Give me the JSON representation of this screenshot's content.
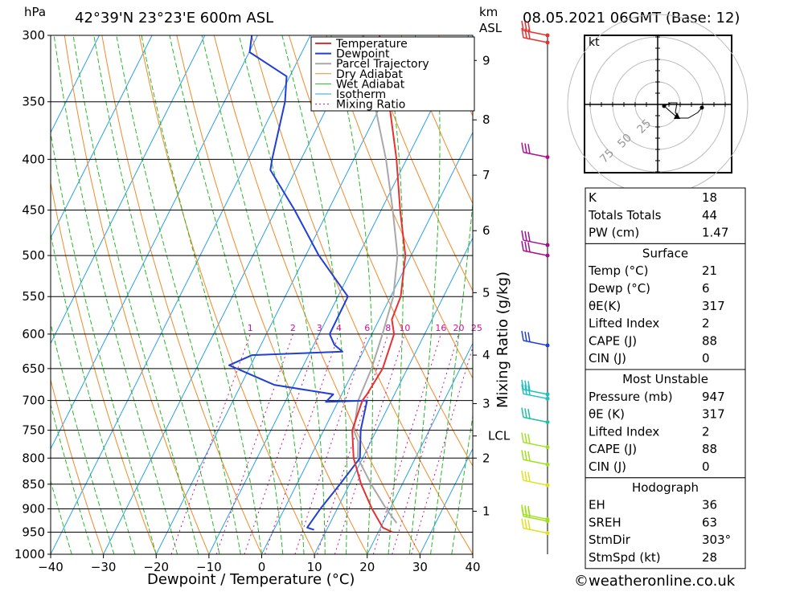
{
  "header": {
    "location": "42°39'N  23°23'E  600m  ASL",
    "datetime": "08.05.2021  06GMT  (Base: 12)",
    "hpa_unit": "hPa",
    "km_unit": "km",
    "asl_unit": "ASL"
  },
  "footer": {
    "copyright": "©weatheronline.co.uk"
  },
  "chart_data": {
    "type": "line",
    "title": "Skew-T log-P diagram",
    "xlabel": "Dewpoint / Temperature (°C)",
    "ylabel": "hPa",
    "right_axis_label": "Mixing Ratio (g/kg)",
    "x_ticks": [
      -40,
      -30,
      -20,
      -10,
      0,
      10,
      20,
      30,
      40
    ],
    "x_range": [
      -40,
      40
    ],
    "p_range": [
      300,
      1000
    ],
    "p_ticks": [
      300,
      350,
      400,
      450,
      500,
      550,
      600,
      650,
      700,
      750,
      800,
      850,
      900,
      950,
      1000
    ],
    "km_ticks": [
      {
        "label": "9",
        "p": 318
      },
      {
        "label": "8",
        "p": 365
      },
      {
        "label": "7",
        "p": 415
      },
      {
        "label": "6",
        "p": 472
      },
      {
        "label": "5",
        "p": 545
      },
      {
        "label": "4",
        "p": 630
      },
      {
        "label": "3",
        "p": 705
      },
      {
        "label": "LCL",
        "p": 760
      },
      {
        "label": "2",
        "p": 800
      },
      {
        "label": "1",
        "p": 905
      }
    ],
    "mixing_ratio_labels": [
      "1",
      "2",
      "3",
      "4",
      "6",
      "8",
      "10",
      "16",
      "20",
      "25"
    ],
    "mixing_ratio_values": [
      1,
      2,
      3,
      4,
      6,
      8,
      10,
      16,
      20,
      25
    ],
    "legend": [
      "Temperature",
      "Dewpoint",
      "Parcel Trajectory",
      "Dry Adiabat",
      "Wet Adiabat",
      "Isotherm",
      "Mixing Ratio"
    ],
    "colors": {
      "temperature": "#e83030",
      "dewpoint": "#1f3fd6",
      "parcel": "#a8a8a8",
      "dry_adiabat": "#f08a28",
      "wet_adiabat": "#28b828",
      "isotherm": "#28a0e8",
      "mixing_ratio": "#d01090"
    },
    "series": [
      {
        "name": "Temperature",
        "points": [
          [
            22.7,
            950
          ],
          [
            20.4,
            940
          ],
          [
            16.6,
            900
          ],
          [
            12.2,
            850
          ],
          [
            8.3,
            800
          ],
          [
            5.4,
            750
          ],
          [
            4.5,
            700
          ],
          [
            4.8,
            690
          ],
          [
            5.3,
            650
          ],
          [
            4.2,
            600
          ],
          [
            2.4,
            580
          ],
          [
            1.9,
            550
          ],
          [
            -1.1,
            500
          ],
          [
            -6.4,
            450
          ],
          [
            -11.9,
            400
          ],
          [
            -18.8,
            350
          ],
          [
            -26.9,
            300
          ]
        ]
      },
      {
        "name": "Dewpoint",
        "points": [
          [
            7.6,
            945
          ],
          [
            6.1,
            940
          ],
          [
            6.8,
            900
          ],
          [
            8.2,
            850
          ],
          [
            9.5,
            800
          ],
          [
            7.0,
            750
          ],
          [
            5.4,
            700
          ],
          [
            -2.3,
            702
          ],
          [
            -1.6,
            690
          ],
          [
            -13.7,
            675
          ],
          [
            -24.1,
            645
          ],
          [
            -20.7,
            630
          ],
          [
            -3.9,
            625
          ],
          [
            -6.1,
            615
          ],
          [
            -8.0,
            600
          ],
          [
            -8.1,
            550
          ],
          [
            -17.5,
            500
          ],
          [
            -26.4,
            450
          ],
          [
            -34.8,
            410
          ],
          [
            -35.5,
            400
          ],
          [
            -38.5,
            350
          ],
          [
            -40.6,
            330
          ],
          [
            -49.9,
            312
          ],
          [
            -51.1,
            300
          ]
        ]
      },
      {
        "name": "Parcel Trajectory",
        "points": [
          [
            22.6,
            930
          ],
          [
            19.3,
            900
          ],
          [
            14.1,
            850
          ],
          [
            9.1,
            800
          ],
          [
            7.6,
            770
          ],
          [
            5.7,
            750
          ],
          [
            3.7,
            700
          ],
          [
            3.2,
            650
          ],
          [
            2.0,
            600
          ],
          [
            0.5,
            550
          ],
          [
            -2.6,
            500
          ],
          [
            -7.8,
            450
          ],
          [
            -13.9,
            400
          ],
          [
            -21.6,
            350
          ],
          [
            -30.1,
            300
          ]
        ]
      }
    ],
    "wind_barbs": [
      {
        "p": 300,
        "color": "#e83030"
      },
      {
        "p": 305,
        "color": "#e83030"
      },
      {
        "p": 398,
        "color": "#b01090"
      },
      {
        "p": 488,
        "color": "#a01090"
      },
      {
        "p": 500,
        "color": "#a01090"
      },
      {
        "p": 616,
        "color": "#1f3fd6"
      },
      {
        "p": 690,
        "color": "#20c0c0"
      },
      {
        "p": 697,
        "color": "#20c0c0"
      },
      {
        "p": 736,
        "color": "#20c0a0"
      },
      {
        "p": 780,
        "color": "#a0e020"
      },
      {
        "p": 812,
        "color": "#a0e020"
      },
      {
        "p": 852,
        "color": "#e0e020"
      },
      {
        "p": 922,
        "color": "#a0e020"
      },
      {
        "p": 926,
        "color": "#a0e020"
      },
      {
        "p": 952,
        "color": "#e0e020"
      }
    ],
    "hodograph": {
      "unit": "kt",
      "rings": [
        "25",
        "50",
        "75"
      ]
    }
  },
  "indices": {
    "general": [
      {
        "label": "K",
        "value": "18"
      },
      {
        "label": "Totals Totals",
        "value": "44"
      },
      {
        "label": "PW (cm)",
        "value": "1.47"
      }
    ],
    "surface_title": "Surface",
    "surface": [
      {
        "label": "Temp (°C)",
        "value": "21"
      },
      {
        "label": "Dewp (°C)",
        "value": "6"
      },
      {
        "label": "θE(K)",
        "value": "317"
      },
      {
        "label": "Lifted Index",
        "value": "2"
      },
      {
        "label": "CAPE (J)",
        "value": "88"
      },
      {
        "label": "CIN (J)",
        "value": "0"
      }
    ],
    "mu_title": "Most Unstable",
    "mu": [
      {
        "label": "Pressure (mb)",
        "value": "947"
      },
      {
        "label": "θE (K)",
        "value": "317"
      },
      {
        "label": "Lifted Index",
        "value": "2"
      },
      {
        "label": "CAPE (J)",
        "value": "88"
      },
      {
        "label": "CIN (J)",
        "value": "0"
      }
    ],
    "hodo_title": "Hodograph",
    "hodo": [
      {
        "label": "EH",
        "value": "36"
      },
      {
        "label": "SREH",
        "value": "63"
      },
      {
        "label": "StmDir",
        "value": "303°"
      },
      {
        "label": "StmSpd (kt)",
        "value": "28"
      }
    ]
  }
}
